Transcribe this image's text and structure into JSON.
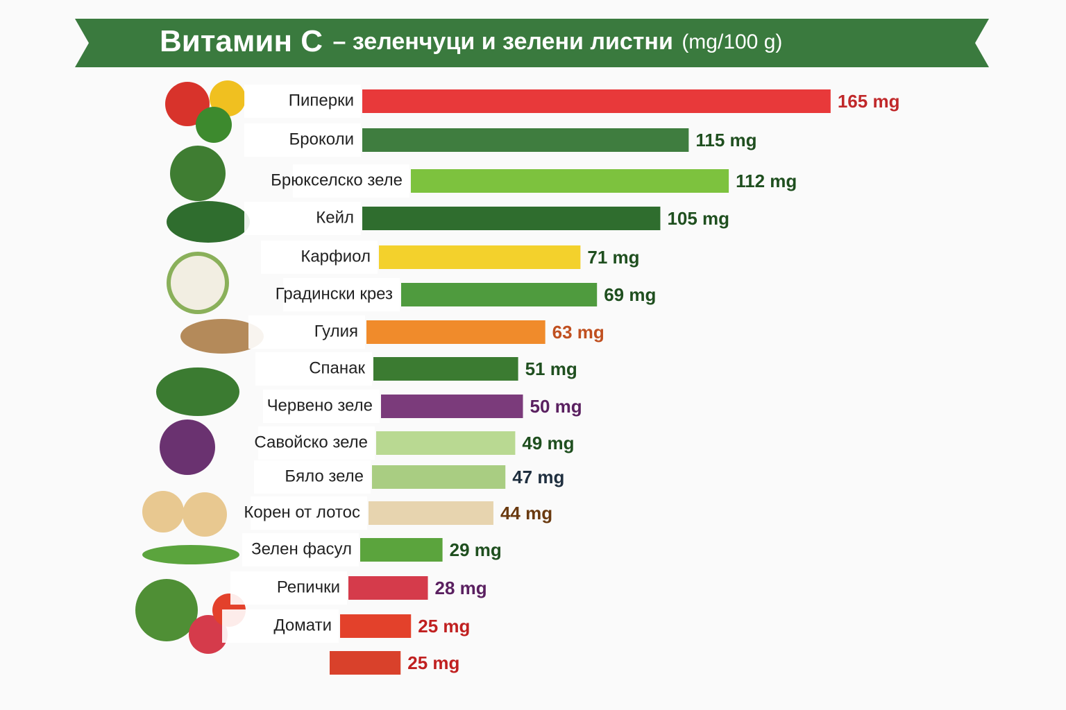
{
  "chart_data": {
    "type": "bar",
    "orientation": "horizontal",
    "title": "Витамин C",
    "subtitle": "– зеленчуци и зелени листни",
    "unit": "(mg/100 g)",
    "categories": [
      "Пиперки",
      "Броколи",
      "Брюкселско зеле",
      "Кейл",
      "Карфиол",
      "Градински крез",
      "Гулия",
      "Спанак",
      "Червено зеле",
      "Савойско зеле",
      "Бяло зеле",
      "Корен от лотос",
      "Зелен фасул",
      "Репички",
      "Домати",
      null
    ],
    "values": [
      165,
      115,
      112,
      105,
      71,
      69,
      63,
      51,
      50,
      49,
      47,
      44,
      29,
      28,
      25,
      25
    ],
    "value_labels": [
      "165 mg",
      "115 mg",
      "112 mg",
      "105 mg",
      "71 mg",
      "69 mg",
      "63 mg",
      "51 mg",
      "50 mg",
      "49 mg",
      "47 mg",
      "44 mg",
      "29 mg",
      "28 mg",
      "25 mg",
      "25 mg"
    ],
    "colors": [
      "#e8393a",
      "#3f7d3f",
      "#7dc23e",
      "#2f6d2e",
      "#f3d12c",
      "#4f9b3e",
      "#f08b2b",
      "#3b7b31",
      "#7b3b7b",
      "#b9d992",
      "#a9cd82",
      "#e7d4af",
      "#5ba43d",
      "#d53b4b",
      "#e3412b",
      "#d9412b"
    ],
    "value_label_colors": [
      "#c0282a",
      "#1f4f1f",
      "#1f4f1f",
      "#1f4f1f",
      "#1f4f1f",
      "#1f4f1f",
      "#c05020",
      "#1f4f1f",
      "#5a2060",
      "#1f4f1f",
      "#1f2f3f",
      "#6a3a10",
      "#1f4f1f",
      "#5a2060",
      "#c02020",
      "#c02020"
    ]
  }
}
